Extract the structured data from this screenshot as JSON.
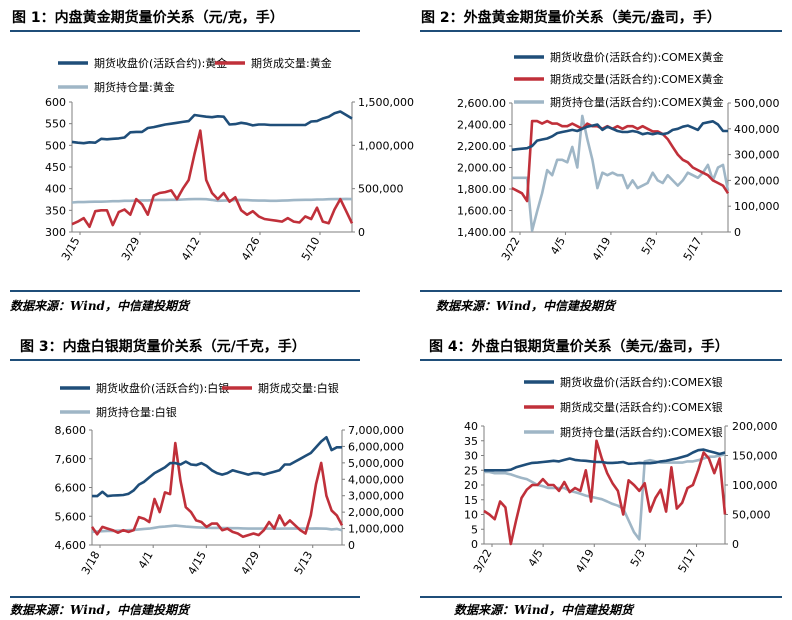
{
  "figures": [
    {
      "title": "图 1：内盘黄金期货量价关系（元/克，手）",
      "source": "数据来源：Wind，中信建投期货"
    },
    {
      "title": "图 2：外盘黄金期货量价关系（美元/盎司，手）",
      "source": "数据来源：Wind，中信建投期货"
    },
    {
      "title": "图 3：内盘白银期货量价关系（元/千克，手）",
      "source": "数据来源：Wind，中信建投期货"
    },
    {
      "title": "图 4：外盘白银期货量价关系（美元/盎司，手）",
      "source": "数据来源：Wind，中信建投期货"
    }
  ],
  "colors": {
    "price": "#1f4e79",
    "volume": "#c0303a",
    "open_interest": "#9fb6c6",
    "rule": "#1f4e79",
    "axis": "#7f7f7f"
  },
  "chart_data": [
    {
      "type": "line",
      "legend_placement": "top",
      "x_ticks": [
        "3/15",
        "3/29",
        "4/12",
        "4/26",
        "5/10"
      ],
      "left_axis": {
        "ylim": [
          300,
          600
        ],
        "ticks": [
          "600",
          "550",
          "500",
          "450",
          "400",
          "350",
          "300"
        ]
      },
      "right_axis": {
        "ylim": [
          0,
          1500000
        ],
        "ticks": [
          "1,500,000",
          "1,000,000",
          "500,000",
          "0"
        ]
      },
      "series": [
        {
          "name": "期货收盘价(活跃合约):黄金",
          "axis": "left",
          "color": "#1f4e79",
          "values": [
            508,
            506,
            505,
            507,
            506,
            515,
            514,
            515,
            516,
            518,
            530,
            531,
            531,
            540,
            542,
            545,
            548,
            550,
            552,
            554,
            556,
            570,
            568,
            566,
            565,
            567,
            566,
            548,
            549,
            552,
            550,
            546,
            548,
            548,
            547,
            547,
            547,
            547,
            547,
            547,
            547,
            555,
            556,
            562,
            566,
            574,
            578,
            570,
            562
          ]
        },
        {
          "name": "期货成交量:黄金",
          "axis": "right",
          "color": "#c0303a",
          "values": [
            90000,
            120000,
            160000,
            60000,
            240000,
            250000,
            250000,
            80000,
            230000,
            260000,
            200000,
            380000,
            320000,
            200000,
            420000,
            450000,
            460000,
            480000,
            380000,
            500000,
            600000,
            900000,
            1170000,
            600000,
            450000,
            380000,
            450000,
            350000,
            400000,
            250000,
            200000,
            240000,
            180000,
            150000,
            140000,
            130000,
            120000,
            160000,
            120000,
            110000,
            180000,
            150000,
            280000,
            120000,
            100000,
            260000,
            380000,
            240000,
            100000
          ]
        },
        {
          "name": "期货持仓量:黄金",
          "axis": "right",
          "color": "#9fb6c6",
          "values": [
            340000,
            345000,
            345000,
            348000,
            350000,
            350000,
            352000,
            355000,
            355000,
            360000,
            360000,
            362000,
            365000,
            365000,
            368000,
            370000,
            370000,
            372000,
            372000,
            375000,
            378000,
            380000,
            380000,
            378000,
            370000,
            360000,
            362000,
            365000,
            368000,
            370000,
            368000,
            365000,
            362000,
            362000,
            360000,
            360000,
            362000,
            365000,
            368000,
            370000,
            372000,
            372000,
            375000,
            375000,
            378000,
            380000,
            380000,
            382000,
            380000
          ]
        }
      ]
    },
    {
      "type": "line",
      "legend_placement": "top",
      "x_ticks": [
        "3/22",
        "4/5",
        "4/19",
        "5/3",
        "5/17"
      ],
      "left_axis": {
        "ylim": [
          1400,
          2600
        ],
        "ticks": [
          "2,600.00",
          "2,400.00",
          "2,200.00",
          "2,000.00",
          "1,800.00",
          "1,600.00",
          "1,400.00"
        ]
      },
      "right_axis": {
        "ylim": [
          0,
          500000
        ],
        "ticks": [
          "500,000",
          "400,000",
          "300,000",
          "200,000",
          "100,000",
          "0"
        ]
      },
      "series": [
        {
          "name": "期货收盘价(活跃合约):COMEX黄金",
          "axis": "left",
          "color": "#1f4e79",
          "values": [
            2165,
            2170,
            2175,
            2180,
            2200,
            2250,
            2260,
            2270,
            2290,
            2320,
            2330,
            2340,
            2350,
            2340,
            2360,
            2380,
            2390,
            2400,
            2350,
            2380,
            2360,
            2340,
            2330,
            2330,
            2340,
            2330,
            2310,
            2320,
            2310,
            2320,
            2310,
            2320,
            2350,
            2360,
            2380,
            2390,
            2370,
            2350,
            2410,
            2420,
            2430,
            2400,
            2340,
            2340
          ]
        },
        {
          "name": "期货成交量(活跃合约):COMEX黄金",
          "axis": "right",
          "color": "#c0303a",
          "values": [
            170000,
            160000,
            150000,
            120000,
            430000,
            430000,
            420000,
            430000,
            420000,
            420000,
            410000,
            410000,
            420000,
            410000,
            400000,
            420000,
            410000,
            410000,
            400000,
            410000,
            400000,
            410000,
            400000,
            410000,
            410000,
            400000,
            410000,
            400000,
            390000,
            390000,
            380000,
            360000,
            330000,
            300000,
            280000,
            270000,
            250000,
            240000,
            230000,
            220000,
            200000,
            190000,
            180000,
            150000
          ]
        },
        {
          "name": "期货持仓量(活跃合约):COMEX黄金",
          "axis": "right",
          "color": "#9fb6c6",
          "values": [
            210000,
            210000,
            210000,
            210000,
            5000,
            80000,
            150000,
            240000,
            220000,
            280000,
            280000,
            270000,
            330000,
            250000,
            450000,
            360000,
            280000,
            170000,
            230000,
            220000,
            230000,
            220000,
            220000,
            170000,
            200000,
            170000,
            180000,
            190000,
            230000,
            200000,
            190000,
            220000,
            200000,
            180000,
            200000,
            230000,
            220000,
            210000,
            230000,
            260000,
            200000,
            250000,
            260000,
            160000
          ]
        }
      ]
    },
    {
      "type": "line",
      "legend_placement": "top",
      "x_ticks": [
        "3/18",
        "4/1",
        "4/15",
        "4/29",
        "5/13"
      ],
      "left_axis": {
        "ylim": [
          4600,
          8600
        ],
        "ticks": [
          "8,600",
          "7,600",
          "6,600",
          "5,600",
          "4,600"
        ]
      },
      "right_axis": {
        "ylim": [
          0,
          7000000
        ],
        "ticks": [
          "7,000,000",
          "6,000,000",
          "5,000,000",
          "4,000,000",
          "3,000,000",
          "2,000,000",
          "1,000,000",
          "0"
        ]
      },
      "series": [
        {
          "name": "期货收盘价(活跃合约):白银",
          "axis": "left",
          "color": "#1f4e79",
          "values": [
            6300,
            6300,
            6450,
            6300,
            6320,
            6330,
            6340,
            6380,
            6500,
            6700,
            6800,
            6950,
            7100,
            7200,
            7300,
            7450,
            7450,
            7400,
            7500,
            7400,
            7380,
            7450,
            7350,
            7200,
            7100,
            7050,
            7100,
            7200,
            7150,
            7100,
            7050,
            7100,
            7100,
            7050,
            7100,
            7150,
            7200,
            7400,
            7400,
            7500,
            7600,
            7700,
            7800,
            8000,
            8200,
            8350,
            7900,
            8000,
            8000
          ]
        },
        {
          "name": "期货成交量:白银",
          "axis": "right",
          "color": "#c0303a",
          "values": [
            1100000,
            650000,
            1100000,
            1000000,
            900000,
            750000,
            900000,
            800000,
            900000,
            1700000,
            1600000,
            1400000,
            2800000,
            2000000,
            3200000,
            3100000,
            6200000,
            3900000,
            2300000,
            2000000,
            1500000,
            1400000,
            1100000,
            1300000,
            1300000,
            900000,
            1000000,
            800000,
            700000,
            500000,
            600000,
            700000,
            600000,
            900000,
            1400000,
            1000000,
            1800000,
            1200000,
            1500000,
            1200000,
            900000,
            700000,
            1800000,
            3700000,
            5000000,
            3000000,
            2100000,
            1800000,
            1200000
          ]
        },
        {
          "name": "期货持仓量:白银",
          "axis": "right",
          "color": "#9fb6c6",
          "values": [
            800000,
            820000,
            840000,
            850000,
            860000,
            870000,
            880000,
            900000,
            920000,
            950000,
            980000,
            1000000,
            1050000,
            1100000,
            1120000,
            1150000,
            1180000,
            1150000,
            1120000,
            1100000,
            1080000,
            1060000,
            1050000,
            1040000,
            1040000,
            1030000,
            1030000,
            1020000,
            1020000,
            1010000,
            1000000,
            1000000,
            1000000,
            1000000,
            1000000,
            990000,
            990000,
            1000000,
            1000000,
            1010000,
            1000000,
            1000000,
            1000000,
            1010000,
            1000000,
            990000,
            950000,
            980000,
            900000
          ]
        }
      ]
    },
    {
      "type": "line",
      "legend_placement": "top",
      "x_ticks": [
        "3/22",
        "4/5",
        "4/19",
        "5/3",
        "5/17"
      ],
      "left_axis": {
        "ylim": [
          0,
          40
        ],
        "ticks": [
          "40",
          "35",
          "30",
          "25",
          "20",
          "15",
          "10",
          "5",
          "0"
        ]
      },
      "right_axis": {
        "ylim": [
          0,
          200000
        ],
        "ticks": [
          "200,000",
          "150,000",
          "100,000",
          "50,000",
          "0"
        ]
      },
      "series": [
        {
          "name": "期货收盘价(活跃合约):COMEX银",
          "axis": "left",
          "color": "#1f4e79",
          "values": [
            25,
            25,
            25,
            25,
            25,
            25.2,
            26,
            26.5,
            27,
            27.5,
            27.6,
            27.8,
            28,
            28.2,
            28,
            28.5,
            29,
            28.5,
            28.3,
            28.2,
            28,
            27.8,
            27.8,
            27.5,
            27.5,
            27.6,
            27.8,
            27.2,
            27.3,
            27.5,
            27.4,
            27.4,
            27.6,
            28,
            28.2,
            28.6,
            29,
            29.5,
            30,
            31,
            31.8,
            32,
            31.5,
            31,
            30.5,
            31
          ]
        },
        {
          "name": "期货成交量(活跃合约):COMEX银",
          "axis": "right",
          "color": "#c0303a",
          "values": [
            56000,
            50000,
            42000,
            72000,
            62000,
            0,
            40000,
            78000,
            92000,
            100000,
            100000,
            110000,
            100000,
            100000,
            90000,
            105000,
            88000,
            95000,
            90000,
            125000,
            72000,
            175000,
            145000,
            120000,
            103000,
            90000,
            50000,
            108000,
            100000,
            90000,
            103000,
            55000,
            78000,
            92000,
            55000,
            130000,
            60000,
            70000,
            95000,
            100000,
            125000,
            155000,
            145000,
            120000,
            145000,
            50000
          ]
        },
        {
          "name": "期货持仓量(活跃合约):COMEX银",
          "axis": "right",
          "color": "#9fb6c6",
          "values": [
            122000,
            122000,
            120000,
            120000,
            120000,
            118000,
            115000,
            112000,
            110000,
            105000,
            100000,
            98000,
            95000,
            95000,
            95000,
            95000,
            90000,
            88000,
            85000,
            82000,
            80000,
            78000,
            76000,
            72000,
            68000,
            65000,
            60000,
            40000,
            20000,
            8000,
            140000,
            142000,
            140000,
            138000,
            138000,
            138000,
            138000,
            138000,
            140000,
            140000,
            142000,
            145000,
            148000,
            148000,
            150000,
            152000
          ]
        }
      ]
    }
  ]
}
